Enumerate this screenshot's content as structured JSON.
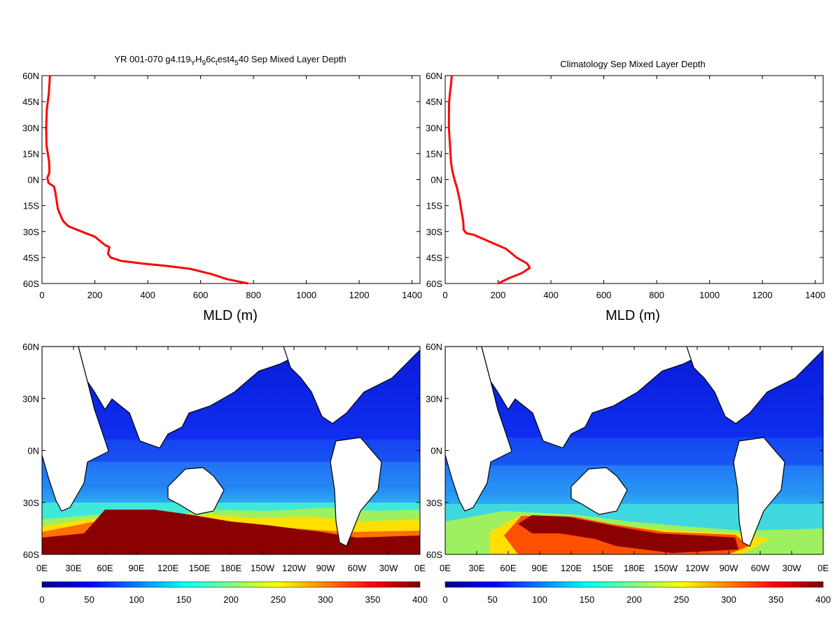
{
  "chart_data": [
    {
      "type": "line",
      "title_parts": [
        "YR 001-070 g4.t19",
        "Y",
        "H",
        "9",
        "6c",
        "t",
        "est4",
        "5",
        "40 Sep Mixed Layer Depth"
      ],
      "xlabel": "MLD (m)",
      "xlim": [
        0,
        1430
      ],
      "ylim": [
        -60,
        60
      ],
      "x_ticks": [
        "0",
        "200",
        "400",
        "600",
        "800",
        "1000",
        "1200",
        "1400"
      ],
      "y_ticks": [
        "60N",
        "45N",
        "30N",
        "15N",
        "0N",
        "15S",
        "30S",
        "45S",
        "60S"
      ],
      "line_color": "#ff0000",
      "series": [
        {
          "points": [
            [
              30,
              60
            ],
            [
              28,
              55
            ],
            [
              26,
              50
            ],
            [
              22,
              45
            ],
            [
              18,
              40
            ],
            [
              16,
              30
            ],
            [
              17,
              20
            ],
            [
              22,
              15
            ],
            [
              27,
              10
            ],
            [
              28,
              4
            ],
            [
              20,
              1
            ],
            [
              25,
              -2
            ],
            [
              45,
              -4
            ],
            [
              50,
              -7
            ],
            [
              55,
              -12
            ],
            [
              60,
              -17
            ],
            [
              68,
              -20
            ],
            [
              80,
              -24
            ],
            [
              100,
              -27
            ],
            [
              150,
              -30
            ],
            [
              200,
              -33
            ],
            [
              240,
              -38
            ],
            [
              255,
              -39
            ],
            [
              250,
              -43
            ],
            [
              260,
              -45
            ],
            [
              300,
              -47
            ],
            [
              380,
              -48.5
            ],
            [
              480,
              -50
            ],
            [
              560,
              -51.5
            ],
            [
              640,
              -54.5
            ],
            [
              700,
              -57.5
            ],
            [
              780,
              -60
            ]
          ]
        }
      ]
    },
    {
      "type": "line",
      "title": "Climatology Sep Mixed Layer Depth",
      "xlabel": "MLD (m)",
      "xlim": [
        0,
        1430
      ],
      "ylim": [
        -60,
        60
      ],
      "x_ticks": [
        "0",
        "200",
        "400",
        "600",
        "800",
        "1000",
        "1200",
        "1400"
      ],
      "y_ticks": [
        "60N",
        "45N",
        "30N",
        "15N",
        "0N",
        "15S",
        "30S",
        "45S",
        "60S"
      ],
      "line_color": "#ff0000",
      "series": [
        {
          "points": [
            [
              25,
              60
            ],
            [
              22,
              55
            ],
            [
              18,
              50
            ],
            [
              15,
              45
            ],
            [
              14,
              40
            ],
            [
              14,
              30
            ],
            [
              18,
              20
            ],
            [
              22,
              10
            ],
            [
              27,
              5
            ],
            [
              35,
              0
            ],
            [
              45,
              -5
            ],
            [
              55,
              -12
            ],
            [
              60,
              -17
            ],
            [
              68,
              -24
            ],
            [
              70,
              -29
            ],
            [
              80,
              -31
            ],
            [
              110,
              -32
            ],
            [
              170,
              -36
            ],
            [
              230,
              -40
            ],
            [
              270,
              -45
            ],
            [
              310,
              -48.5
            ],
            [
              320,
              -51
            ],
            [
              290,
              -54
            ],
            [
              240,
              -57
            ],
            [
              200,
              -60
            ]
          ]
        }
      ]
    },
    {
      "type": "heatmap",
      "xlim": [
        0,
        360
      ],
      "ylim": [
        -60,
        60
      ],
      "x_ticks": [
        "0E",
        "30E",
        "60E",
        "90E",
        "120E",
        "150E",
        "180E",
        "150W",
        "120W",
        "90W",
        "60W",
        "30W",
        "0E"
      ],
      "y_ticks": [
        "60N",
        "30N",
        "0N",
        "30S",
        "60S"
      ],
      "colorbar": {
        "min": 0,
        "max": 400,
        "ticks": [
          "0",
          "50",
          "100",
          "150",
          "200",
          "250",
          "300",
          "350",
          "400"
        ]
      },
      "southern_band": {
        "west_lon": 20,
        "east_lon": 330,
        "top_lat": -35,
        "level": 400
      }
    },
    {
      "type": "heatmap",
      "xlim": [
        0,
        360
      ],
      "ylim": [
        -60,
        60
      ],
      "x_ticks": [
        "0E",
        "30E",
        "60E",
        "90E",
        "120E",
        "150E",
        "180E",
        "150W",
        "120W",
        "90W",
        "60W",
        "30W",
        "0E"
      ],
      "y_ticks": [
        "60N",
        "30N",
        "0N",
        "30S",
        "60S"
      ],
      "colorbar": {
        "min": 0,
        "max": 400,
        "ticks": [
          "0",
          "50",
          "100",
          "150",
          "200",
          "250",
          "300",
          "350",
          "400"
        ]
      },
      "southern_band": {
        "west_lon": 70,
        "east_lon": 300,
        "top_lat": -38,
        "level": 360
      }
    }
  ],
  "colors": {
    "line": "#ff0000",
    "land": "#ffffff",
    "colormap": [
      "#00008f",
      "#0000ff",
      "#0080ff",
      "#00ffff",
      "#80ff80",
      "#ffff00",
      "#ff8000",
      "#ff0000",
      "#800000"
    ]
  }
}
